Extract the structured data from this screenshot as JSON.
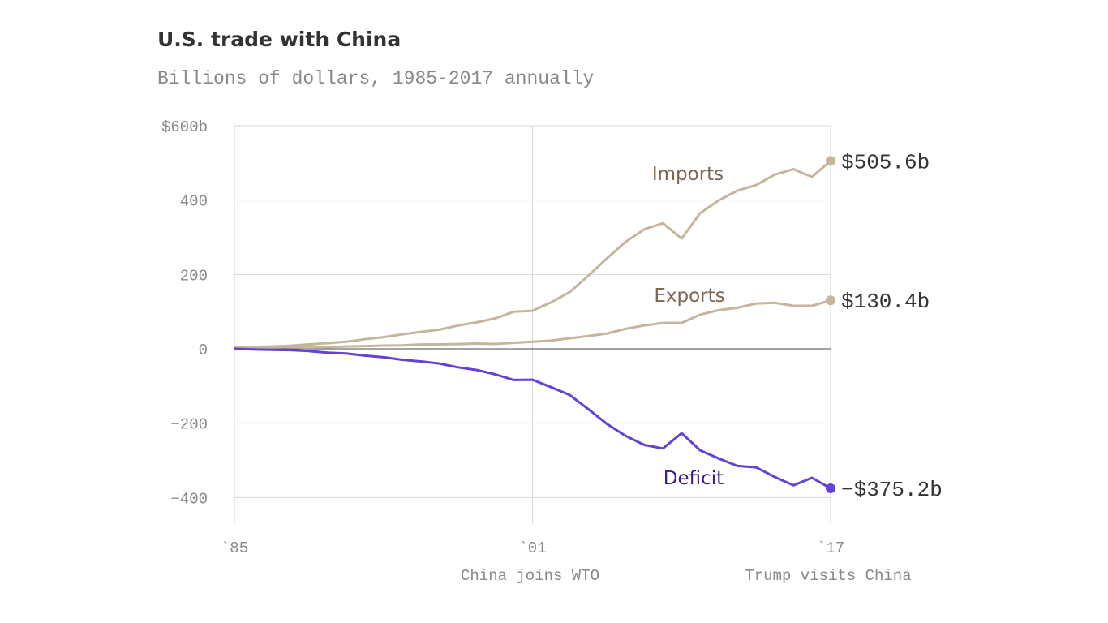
{
  "chart_data": {
    "type": "line",
    "title": "U.S. trade with China",
    "subtitle": "Billions of dollars, 1985-2017 annually",
    "xlim": [
      1985,
      2017
    ],
    "ylim": [
      -470,
      600
    ],
    "y_ticks": [
      600,
      400,
      200,
      0,
      -200,
      -400
    ],
    "y_tick_labels": [
      "$600b",
      "400",
      "200",
      "0",
      "−200",
      "−400"
    ],
    "x_ticks": [
      1985,
      2001,
      2017
    ],
    "x_tick_labels": [
      "`85",
      "`01",
      "`17"
    ],
    "grid": true,
    "annotations": [
      {
        "x": 2001,
        "text": "China joins WTO"
      },
      {
        "x": 2017,
        "text": "Trump visits China"
      }
    ],
    "x": [
      1985,
      1986,
      1987,
      1988,
      1989,
      1990,
      1991,
      1992,
      1993,
      1994,
      1995,
      1996,
      1997,
      1998,
      1999,
      2000,
      2001,
      2002,
      2003,
      2004,
      2005,
      2006,
      2007,
      2008,
      2009,
      2010,
      2011,
      2012,
      2013,
      2014,
      2015,
      2016,
      2017
    ],
    "series": [
      {
        "name": "Imports",
        "color": "#c4b59c",
        "label_color": "#7a6650",
        "end_label": "$505.6b",
        "values": [
          3.9,
          4.8,
          6.3,
          8.5,
          12.0,
          15.2,
          19.0,
          25.7,
          31.5,
          38.8,
          45.5,
          51.5,
          62.6,
          71.2,
          81.8,
          100.0,
          102.3,
          125.2,
          152.4,
          196.7,
          243.5,
          287.8,
          321.4,
          337.8,
          296.4,
          364.9,
          399.4,
          425.6,
          440.4,
          468.5,
          483.2,
          462.4,
          505.6
        ]
      },
      {
        "name": "Exports",
        "color": "#c4b59c",
        "label_color": "#7a6650",
        "end_label": "$130.4b",
        "values": [
          3.9,
          3.1,
          3.5,
          5.0,
          5.8,
          4.8,
          6.3,
          7.4,
          8.8,
          9.3,
          11.8,
          12.0,
          12.9,
          14.2,
          13.1,
          16.2,
          19.2,
          22.1,
          28.4,
          34.4,
          41.2,
          53.7,
          62.9,
          69.7,
          69.5,
          91.9,
          104.1,
          110.5,
          121.7,
          123.7,
          115.9,
          115.6,
          130.4
        ]
      },
      {
        "name": "Deficit",
        "color": "#6541d6",
        "label_color": "#3d1a8f",
        "end_label": "−$375.2b",
        "values": [
          0.0,
          -1.7,
          -2.8,
          -3.5,
          -6.2,
          -10.4,
          -12.7,
          -18.3,
          -22.8,
          -29.5,
          -33.8,
          -39.5,
          -49.7,
          -56.9,
          -68.7,
          -83.8,
          -83.1,
          -103.1,
          -124.1,
          -162.3,
          -202.3,
          -234.1,
          -258.5,
          -268.0,
          -226.9,
          -273.0,
          -295.3,
          -315.1,
          -318.7,
          -344.8,
          -367.3,
          -346.8,
          -375.2
        ]
      }
    ]
  }
}
